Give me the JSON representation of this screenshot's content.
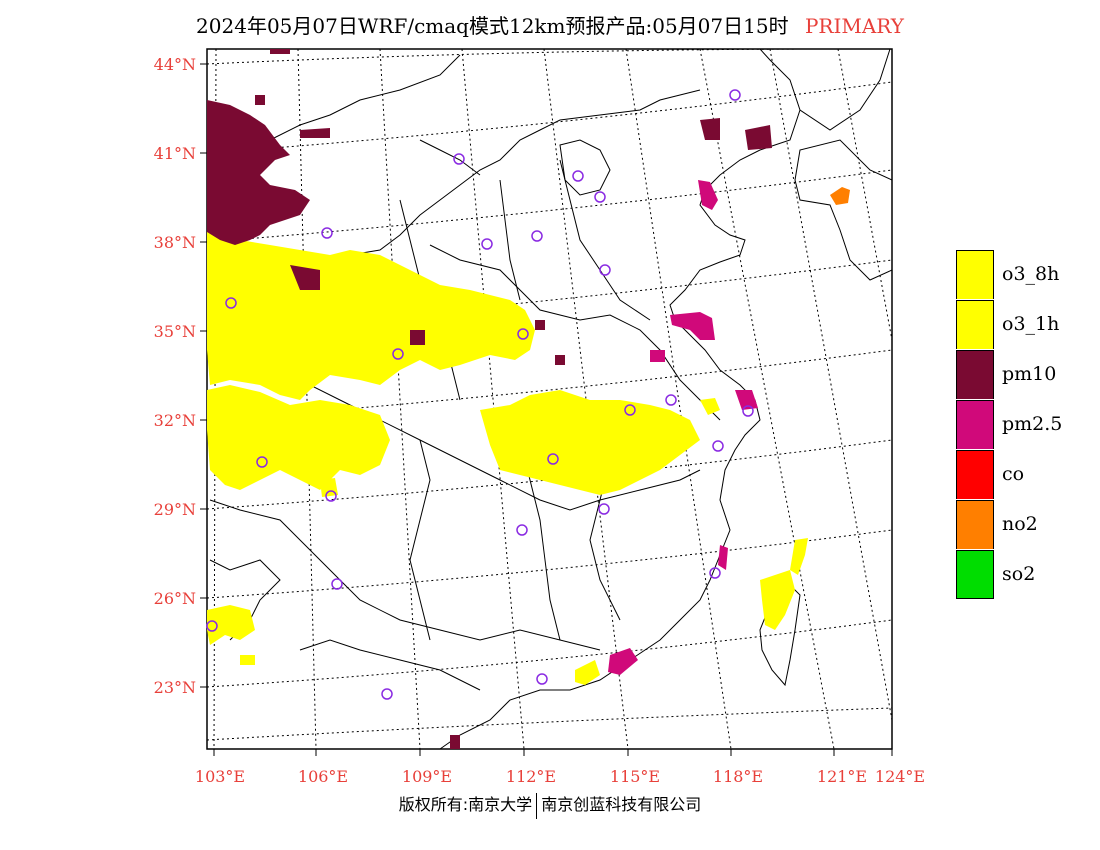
{
  "title": {
    "main": "2024年05月07日WRF/cmaq模式12km预报产品:05月07日15时",
    "tag": "PRIMARY"
  },
  "axes": {
    "lat_labels": [
      "44°N",
      "41°N",
      "38°N",
      "35°N",
      "32°N",
      "29°N",
      "26°N",
      "23°N"
    ],
    "lon_labels": [
      "103°E",
      "106°E",
      "109°E",
      "112°E",
      "115°E",
      "118°E",
      "121°E",
      "124°E"
    ]
  },
  "legend": [
    {
      "label": "o3_8h",
      "color": "#ffff00"
    },
    {
      "label": "o3_1h",
      "color": "#ffff00"
    },
    {
      "label": "pm10",
      "color": "#7a0a32"
    },
    {
      "label": "pm2.5",
      "color": "#d0097a"
    },
    {
      "label": "co",
      "color": "#ff0000"
    },
    {
      "label": "no2",
      "color": "#ff7f00"
    },
    {
      "label": "so2",
      "color": "#00dd00"
    }
  ],
  "footer": {
    "left": "版权所有:南京大学",
    "right": "南京创蓝科技有限公司"
  }
}
